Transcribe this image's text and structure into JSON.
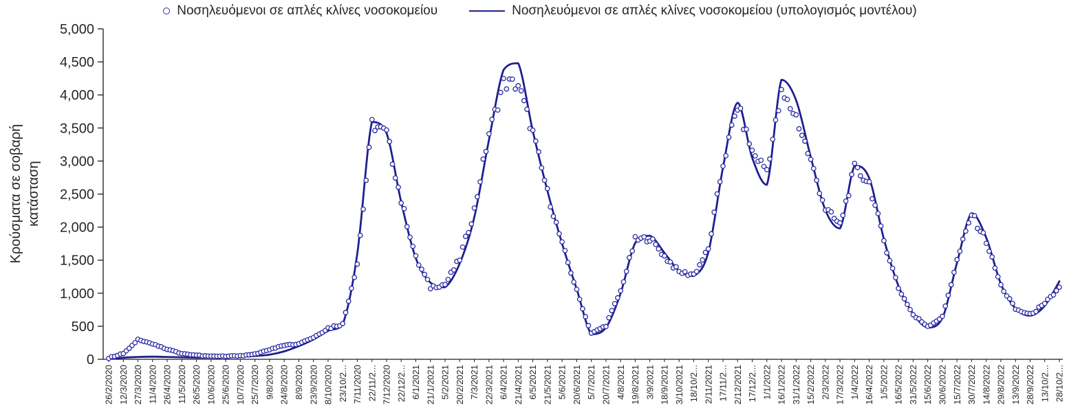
{
  "chart_data": {
    "type": "line",
    "title": "",
    "xlabel": "",
    "ylabel": "Κρούσματα σε σοβαρή κατάσταση",
    "ylabel_lines": [
      "Κρούσματα σε σοβαρή",
      "κατάσταση"
    ],
    "ylim": [
      0,
      5000
    ],
    "y_tick_step": 500,
    "y_ticks": [
      "0",
      "500",
      "1,000",
      "1,500",
      "2,000",
      "2,500",
      "3,000",
      "3,500",
      "4,000",
      "4,500",
      "5,000"
    ],
    "grid": false,
    "legend_position": "top",
    "axis_color": "#1a1a1a",
    "text_color": "#262626",
    "x_categories": [
      "26/2/2020",
      "12/3/2020",
      "27/3/2020",
      "11/4/2020",
      "26/4/2020",
      "11/5/2020",
      "26/5/2020",
      "10/6/2020",
      "25/6/2020",
      "10/7/2020",
      "25/7/2020",
      "9/8/2020",
      "24/8/2020",
      "8/9/2020",
      "23/9/2020",
      "8/10/2020",
      "23/10/2020",
      "7/11/2020",
      "22/11/2020",
      "7/12/2020",
      "22/12/2020",
      "6/1/2021",
      "21/1/2021",
      "5/2/2021",
      "20/2/2021",
      "7/3/2021",
      "22/3/2021",
      "6/4/2021",
      "21/4/2021",
      "6/5/2021",
      "21/5/2021",
      "5/6/2021",
      "20/6/2021",
      "5/7/2021",
      "20/7/2021",
      "4/8/2021",
      "19/8/2021",
      "3/9/2021",
      "18/9/2021",
      "3/10/2021",
      "18/10/2021",
      "2/11/2021",
      "17/11/2021",
      "2/12/2021",
      "17/12/2021",
      "1/1/2022",
      "16/1/2022",
      "31/1/2022",
      "15/2/2022",
      "2/3/2022",
      "17/3/2022",
      "1/4/2022",
      "16/4/2022",
      "1/5/2022",
      "16/5/2022",
      "31/5/2022",
      "15/6/2022",
      "30/6/2022",
      "15/7/2022",
      "30/7/2022",
      "14/8/2022",
      "29/8/2022",
      "13/9/2022",
      "28/9/2022",
      "13/10/2022",
      "28/10/2022"
    ],
    "series": [
      {
        "name": "Νοσηλευόμενοι σε απλές κλίνες νοσοκομείου",
        "type": "scatter",
        "marker": "open-circle",
        "color": "#2b2ba3",
        "values": [
          20,
          90,
          295,
          235,
          150,
          90,
          60,
          45,
          45,
          55,
          80,
          145,
          215,
          240,
          330,
          470,
          530,
          1450,
          3560,
          3420,
          2400,
          1530,
          1090,
          1130,
          1520,
          2260,
          3420,
          4180,
          4150,
          3420,
          2530,
          1740,
          1040,
          390,
          510,
          1030,
          1810,
          1830,
          1560,
          1320,
          1280,
          1660,
          2960,
          3830,
          3140,
          2870,
          4010,
          3680,
          3000,
          2280,
          2030,
          2890,
          2670,
          1800,
          1080,
          670,
          500,
          640,
          1490,
          2200,
          1790,
          1110,
          760,
          680,
          830,
          1090
        ]
      },
      {
        "name": "Νοσηλευόμενοι σε απλές κλίνες νοσοκομείου (υπολογισμός μοντέλου)",
        "type": "line",
        "color": "#1f1f8f",
        "values": [
          5,
          25,
          35,
          40,
          35,
          30,
          25,
          25,
          30,
          40,
          50,
          70,
          120,
          200,
          300,
          430,
          530,
          1600,
          3590,
          3420,
          2380,
          1530,
          1160,
          1090,
          1450,
          2150,
          3320,
          4380,
          4480,
          3450,
          2550,
          1750,
          1060,
          380,
          480,
          1000,
          1760,
          1870,
          1610,
          1340,
          1260,
          1620,
          2900,
          3880,
          3050,
          2640,
          4230,
          3920,
          3060,
          2260,
          1980,
          2930,
          2740,
          1820,
          1110,
          690,
          480,
          620,
          1460,
          2210,
          1840,
          1140,
          770,
          660,
          810,
          1180
        ]
      }
    ]
  }
}
